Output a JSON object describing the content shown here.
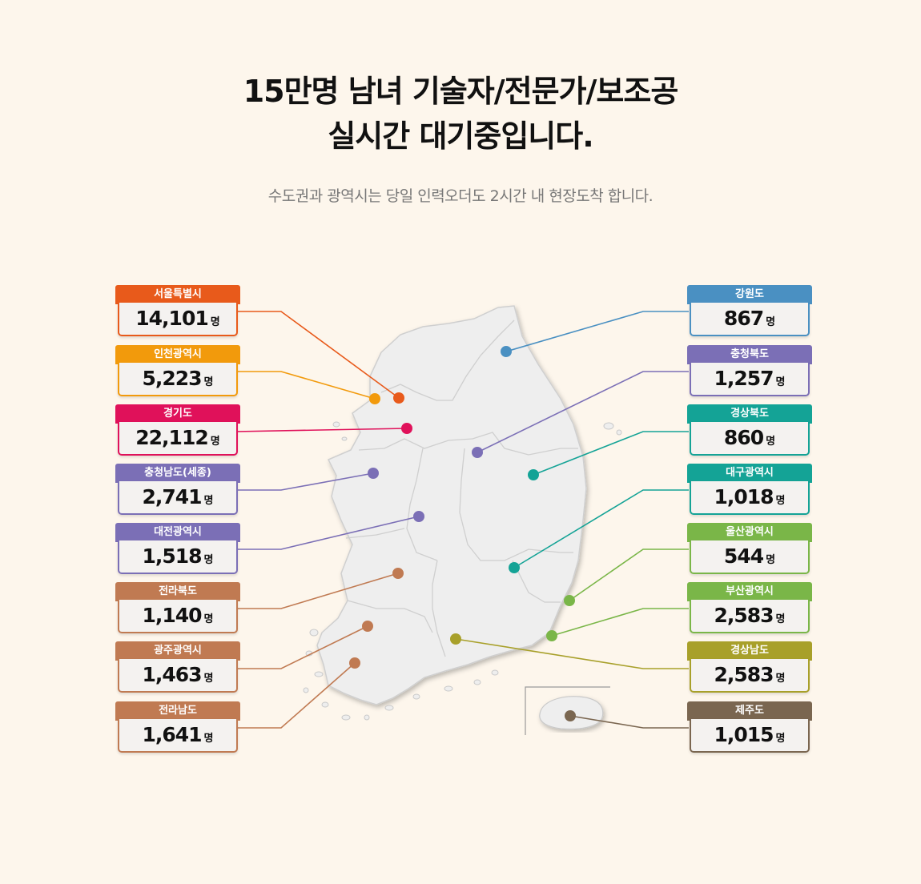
{
  "headline": {
    "line1": "15만명 남녀 기술자/전문가/보조공",
    "line2": "실시간 대기중입니다."
  },
  "subline": "수도권과 광역시는 당일 인력오더도 2시간 내 현장도착 합니다.",
  "unit": "명",
  "regions_left": [
    {
      "name": "서울특별시",
      "count": "14,101",
      "color": "#e85a1b"
    },
    {
      "name": "인천광역시",
      "count": "5,223",
      "color": "#f29a0c"
    },
    {
      "name": "경기도",
      "count": "22,112",
      "color": "#e0115a"
    },
    {
      "name": "충청남도(세종)",
      "count": "2,741",
      "color": "#7b6fb6"
    },
    {
      "name": "대전광역시",
      "count": "1,518",
      "color": "#7b6fb6"
    },
    {
      "name": "전라북도",
      "count": "1,140",
      "color": "#c07a52"
    },
    {
      "name": "광주광역시",
      "count": "1,463",
      "color": "#c07a52"
    },
    {
      "name": "전라남도",
      "count": "1,641",
      "color": "#c07a52"
    }
  ],
  "regions_right": [
    {
      "name": "강원도",
      "count": "867",
      "color": "#4a90c2"
    },
    {
      "name": "충청북도",
      "count": "1,257",
      "color": "#7b6fb6"
    },
    {
      "name": "경상북도",
      "count": "860",
      "color": "#14a396"
    },
    {
      "name": "대구광역시",
      "count": "1,018",
      "color": "#14a396"
    },
    {
      "name": "울산광역시",
      "count": "544",
      "color": "#7ab648"
    },
    {
      "name": "부산광역시",
      "count": "2,583",
      "color": "#7ab648"
    },
    {
      "name": "경상남도",
      "count": "2,583",
      "color": "#a8a02a"
    },
    {
      "name": "제주도",
      "count": "1,015",
      "color": "#7a6650"
    }
  ]
}
